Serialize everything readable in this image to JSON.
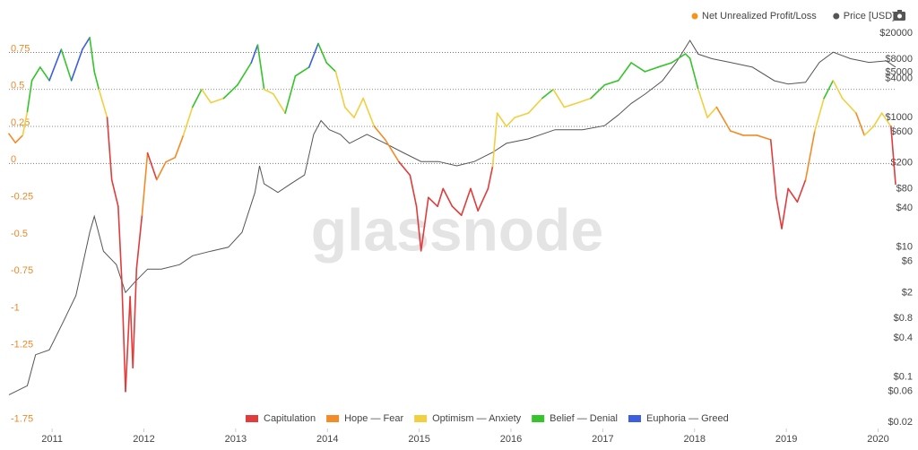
{
  "chart_data": {
    "type": "line",
    "watermark": "glassnode",
    "xlim": [
      2010.53,
      2020.2
    ],
    "xticks": [
      2011,
      2012,
      2013,
      2014,
      2015,
      2016,
      2017,
      2018,
      2019,
      2020
    ],
    "ylim": [
      -1.79,
      0.91
    ],
    "yticks": [
      0.75,
      0.5,
      0.25,
      0,
      -0.25,
      -0.5,
      -0.75,
      -1,
      -1.25,
      -1.75
    ],
    "y2lim": [
      0.016,
      23500
    ],
    "y2log": true,
    "y2ticks": [
      {
        "value": 20000,
        "label": "$20000"
      },
      {
        "value": 8000,
        "label": "$8000"
      },
      {
        "value": 5000,
        "label": "$5000"
      },
      {
        "value": 4000,
        "label": "$4000"
      },
      {
        "value": 1000,
        "label": "$1000"
      },
      {
        "value": 600,
        "label": "$600"
      },
      {
        "value": 200,
        "label": "$200"
      },
      {
        "value": 80,
        "label": "$80"
      },
      {
        "value": 40,
        "label": "$40"
      },
      {
        "value": 10,
        "label": "$10"
      },
      {
        "value": 6,
        "label": "$6"
      },
      {
        "value": 2,
        "label": "$2"
      },
      {
        "value": 0.8,
        "label": "$0.8"
      },
      {
        "value": 0.4,
        "label": "$0.4"
      },
      {
        "value": 0.1,
        "label": "$0.1"
      },
      {
        "value": 0.06,
        "label": "$0.06"
      },
      {
        "value": 0.02,
        "label": "$0.02"
      }
    ],
    "zones": [
      {
        "name": "Capitulation",
        "color": "#e03c3c",
        "max": 0
      },
      {
        "name": "Hope — Fear",
        "color": "#f28c28",
        "max": 0.25
      },
      {
        "name": "Optimism — Anxiety",
        "color": "#f0d040",
        "max": 0.5
      },
      {
        "name": "Belief — Denial",
        "color": "#35c42a",
        "max": 0.75
      },
      {
        "name": "Euphoria — Greed",
        "color": "#3b5fe0",
        "max": null
      }
    ],
    "series": [
      {
        "name": "Net Unrealized Profit/Loss",
        "color": "#f7931a",
        "x": [
          2010.53,
          2010.6,
          2010.68,
          2010.73,
          2010.78,
          2010.87,
          2010.97,
          2011.1,
          2011.21,
          2011.33,
          2011.41,
          2011.46,
          2011.51,
          2011.6,
          2011.65,
          2011.72,
          2011.76,
          2011.8,
          2011.85,
          2011.88,
          2011.92,
          2011.98,
          2012.04,
          2012.14,
          2012.24,
          2012.34,
          2012.43,
          2012.53,
          2012.63,
          2012.73,
          2012.87,
          2013.02,
          2013.17,
          2013.24,
          2013.31,
          2013.41,
          2013.54,
          2013.65,
          2013.8,
          2013.9,
          2013.99,
          2014.09,
          2014.19,
          2014.29,
          2014.39,
          2014.51,
          2014.63,
          2014.78,
          2014.9,
          2014.97,
          2015.02,
          2015.1,
          2015.2,
          2015.26,
          2015.36,
          2015.46,
          2015.56,
          2015.64,
          2015.75,
          2015.8,
          2015.85,
          2015.95,
          2016.04,
          2016.19,
          2016.34,
          2016.46,
          2016.58,
          2016.73,
          2016.87,
          2017.02,
          2017.17,
          2017.31,
          2017.46,
          2017.6,
          2017.75,
          2017.9,
          2017.95,
          2018.04,
          2018.14,
          2018.24,
          2018.39,
          2018.53,
          2018.68,
          2018.83,
          2018.89,
          2018.95,
          2019.02,
          2019.12,
          2019.21,
          2019.31,
          2019.41,
          2019.51,
          2019.61,
          2019.76,
          2019.85,
          2019.95,
          2020.04,
          2020.14,
          2020.19
        ],
        "values": [
          0.2,
          0.14,
          0.19,
          0.35,
          0.56,
          0.65,
          0.56,
          0.77,
          0.56,
          0.77,
          0.85,
          0.62,
          0.5,
          0.31,
          -0.11,
          -0.29,
          -0.8,
          -1.54,
          -0.9,
          -1.38,
          -0.71,
          -0.35,
          0.07,
          -0.11,
          0.01,
          0.04,
          0.19,
          0.38,
          0.5,
          0.41,
          0.44,
          0.53,
          0.68,
          0.8,
          0.5,
          0.47,
          0.34,
          0.59,
          0.65,
          0.81,
          0.68,
          0.62,
          0.38,
          0.31,
          0.44,
          0.25,
          0.16,
          0.01,
          -0.08,
          -0.29,
          -0.59,
          -0.23,
          -0.29,
          -0.17,
          -0.29,
          -0.35,
          -0.17,
          -0.32,
          -0.17,
          -0.02,
          0.34,
          0.25,
          0.31,
          0.34,
          0.44,
          0.5,
          0.38,
          0.41,
          0.44,
          0.53,
          0.56,
          0.68,
          0.62,
          0.65,
          0.68,
          0.74,
          0.71,
          0.5,
          0.31,
          0.38,
          0.22,
          0.19,
          0.19,
          0.16,
          -0.23,
          -0.44,
          -0.17,
          -0.26,
          -0.11,
          0.22,
          0.44,
          0.56,
          0.44,
          0.34,
          0.19,
          0.25,
          0.34,
          0.25,
          -0.14
        ]
      },
      {
        "name": "Price [USD]",
        "color": "#555555",
        "axis": "y2",
        "x": [
          2010.53,
          2010.73,
          2010.82,
          2010.97,
          2011.12,
          2011.26,
          2011.41,
          2011.46,
          2011.56,
          2011.7,
          2011.8,
          2011.9,
          2012.04,
          2012.19,
          2012.39,
          2012.53,
          2012.73,
          2012.92,
          2013.07,
          2013.21,
          2013.26,
          2013.31,
          2013.46,
          2013.6,
          2013.75,
          2013.85,
          2013.93,
          2014.02,
          2014.14,
          2014.24,
          2014.43,
          2014.63,
          2014.82,
          2015.02,
          2015.21,
          2015.41,
          2015.6,
          2015.8,
          2015.95,
          2016.19,
          2016.48,
          2016.78,
          2017.02,
          2017.17,
          2017.31,
          2017.46,
          2017.65,
          2017.8,
          2017.95,
          2018.04,
          2018.19,
          2018.39,
          2018.63,
          2018.87,
          2019.02,
          2019.21,
          2019.36,
          2019.51,
          2019.7,
          2019.9,
          2020.09,
          2020.19
        ],
        "values": [
          0.053,
          0.073,
          0.22,
          0.26,
          0.7,
          1.8,
          17,
          30,
          8.7,
          5.4,
          2,
          2.9,
          4.6,
          4.6,
          5.4,
          7.4,
          8.7,
          10,
          17,
          70,
          180,
          95,
          70,
          95,
          130,
          550,
          900,
          650,
          550,
          400,
          550,
          400,
          290,
          210,
          210,
          180,
          210,
          290,
          400,
          470,
          650,
          650,
          750,
          1100,
          1650,
          2300,
          3700,
          7100,
          15500,
          9500,
          8100,
          7100,
          6000,
          3700,
          3300,
          3500,
          7100,
          10200,
          8100,
          7100,
          7500,
          6000
        ]
      }
    ]
  }
}
